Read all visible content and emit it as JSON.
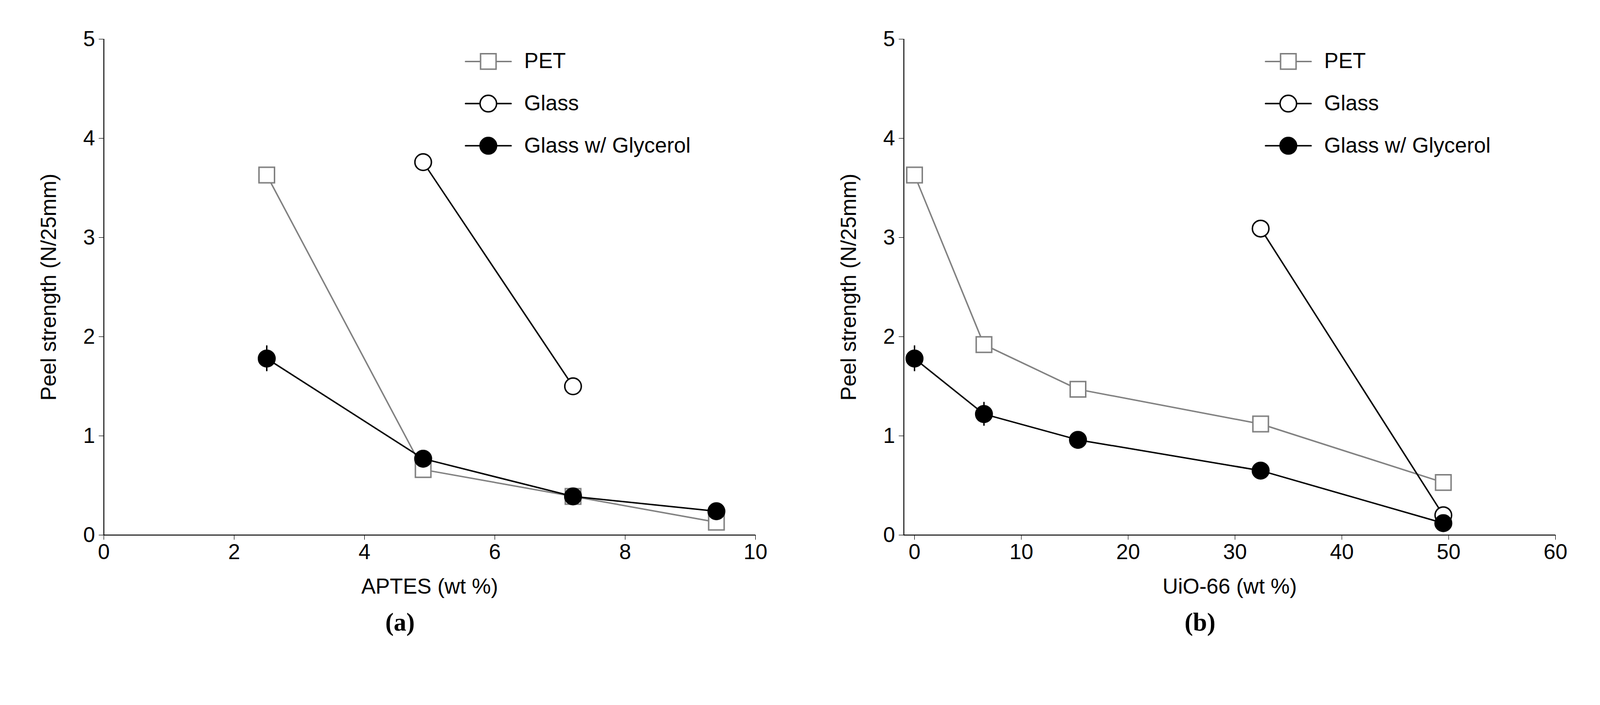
{
  "chart_data": [
    {
      "type": "line",
      "title": "(a)",
      "x_label": "APTES (wt %)",
      "y_label": "Peel strength (N/25mm)",
      "xlim": [
        0,
        10
      ],
      "xticks": [
        0,
        2,
        4,
        6,
        8,
        10
      ],
      "ylim": [
        0,
        5
      ],
      "yticks": [
        0,
        1,
        2,
        3,
        4,
        5
      ],
      "legend": "upper right",
      "series": [
        {
          "name": "PET",
          "color": "#808080",
          "marker": "square-open",
          "x": [
            2.5,
            4.9,
            7.2,
            9.4
          ],
          "values": [
            3.63,
            0.66,
            0.39,
            0.13
          ],
          "errors": [
            0.06,
            0.06,
            0.04,
            0.08
          ]
        },
        {
          "name": "Glass",
          "color": "#000000",
          "marker": "circle-open",
          "x": [
            4.9,
            7.2
          ],
          "values": [
            3.76,
            1.5
          ],
          "errors": [
            0.06,
            0.06
          ]
        },
        {
          "name": "Glass w/ Glycerol",
          "color": "#000000",
          "marker": "circle",
          "x": [
            2.5,
            4.9,
            7.2,
            9.4
          ],
          "values": [
            1.78,
            0.77,
            0.39,
            0.24
          ],
          "errors": [
            0.13,
            0.05,
            0.06,
            0.04
          ]
        }
      ]
    },
    {
      "type": "line",
      "title": "(b)",
      "x_label": "UiO-66 (wt %)",
      "y_label": "Peel strength (N/25mm)",
      "xlim": [
        -1,
        60
      ],
      "xticks": [
        0,
        10,
        20,
        30,
        40,
        50,
        60
      ],
      "ylim": [
        0,
        5
      ],
      "yticks": [
        0,
        1,
        2,
        3,
        4,
        5
      ],
      "legend": "upper right",
      "series": [
        {
          "name": "PET",
          "color": "#808080",
          "marker": "square-open",
          "x": [
            0,
            6.5,
            15.3,
            32.4,
            49.5
          ],
          "values": [
            3.63,
            1.92,
            1.47,
            1.12,
            0.53
          ],
          "errors": [
            0.06,
            0.06,
            0.06,
            0.07,
            0.05
          ]
        },
        {
          "name": "Glass",
          "color": "#000000",
          "marker": "circle-open",
          "x": [
            32.4,
            49.5
          ],
          "values": [
            3.09,
            0.2
          ],
          "errors": [
            0.05,
            0.05
          ]
        },
        {
          "name": "Glass w/ Glycerol",
          "color": "#000000",
          "marker": "circle",
          "x": [
            0,
            6.5,
            15.3,
            32.4,
            49.5
          ],
          "values": [
            1.78,
            1.22,
            0.96,
            0.65,
            0.12
          ],
          "errors": [
            0.13,
            0.12,
            0.04,
            0.04,
            0.04
          ]
        }
      ]
    }
  ]
}
